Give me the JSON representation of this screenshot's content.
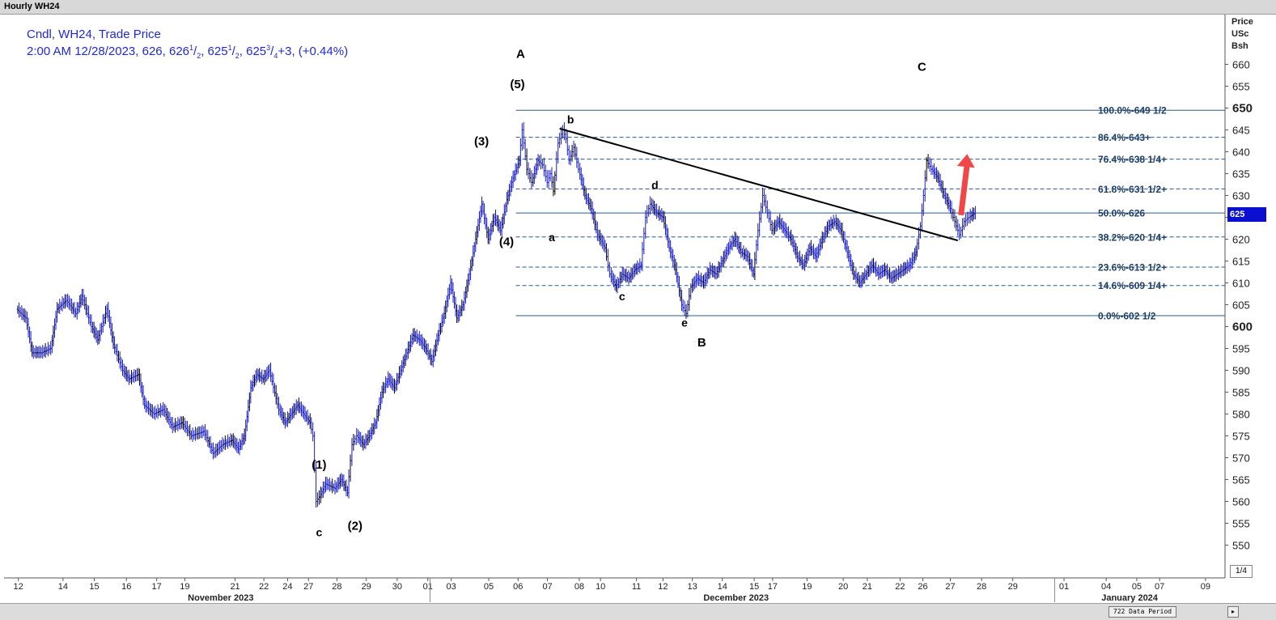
{
  "window": {
    "title": "Hourly WH24"
  },
  "legend": {
    "line1": "Cndl, WH24, Trade Price",
    "line2_parts": [
      "2:00 AM 12/28/2023, 626, 626",
      "1",
      "/",
      "2",
      ", 625",
      "1",
      "/",
      "2",
      ", 625",
      "3",
      "/",
      "4",
      "+3, (+0.44%)"
    ]
  },
  "price_axis": {
    "header": [
      "Price",
      "USc",
      "Bsh"
    ],
    "last_price_label": "625",
    "fraction_button": "1/4"
  },
  "bottom": {
    "data_period": "722 Data Period",
    "scroll_icon": "chevron-right-icon"
  },
  "colors": {
    "bars": "#1a1fc8",
    "bars_alt": "#000000",
    "fib_line": "#2a5a8a",
    "fib_text": "#1f3f66",
    "trendline": "#000000",
    "arrow": "#f04848",
    "last_price_bg": "#0b0fd0"
  },
  "chart_data": {
    "type": "candlestick",
    "title": "Hourly WH24",
    "ylabel": "Price USc Bsh",
    "ylim": [
      545,
      665
    ],
    "y_ticks": [
      550,
      555,
      560,
      565,
      570,
      575,
      580,
      585,
      590,
      595,
      600,
      605,
      610,
      615,
      620,
      625,
      630,
      635,
      640,
      645,
      650,
      655,
      660
    ],
    "y_ticks_bold": [
      600,
      650
    ],
    "x_ticks": [
      {
        "label": "12",
        "t": 0.02
      },
      {
        "label": "14",
        "t": 1.45
      },
      {
        "label": "15",
        "t": 2.45
      },
      {
        "label": "16",
        "t": 3.48
      },
      {
        "label": "17",
        "t": 4.45
      },
      {
        "label": "19",
        "t": 5.35
      },
      {
        "label": "21",
        "t": 6.96
      },
      {
        "label": "22",
        "t": 7.88
      },
      {
        "label": "24",
        "t": 8.64
      },
      {
        "label": "27",
        "t": 9.31
      },
      {
        "label": "28",
        "t": 10.22
      },
      {
        "label": "29",
        "t": 11.16
      },
      {
        "label": "30",
        "t": 12.15
      },
      {
        "label": "01",
        "t": 13.13
      },
      {
        "label": "03",
        "t": 13.88
      },
      {
        "label": "05",
        "t": 15.08
      },
      {
        "label": "06",
        "t": 16.02
      },
      {
        "label": "07",
        "t": 16.96
      },
      {
        "label": "08",
        "t": 17.98
      },
      {
        "label": "10",
        "t": 18.66
      },
      {
        "label": "11",
        "t": 19.81
      },
      {
        "label": "12",
        "t": 20.66
      },
      {
        "label": "13",
        "t": 21.6
      },
      {
        "label": "14",
        "t": 22.56
      },
      {
        "label": "15",
        "t": 23.58
      },
      {
        "label": "17",
        "t": 24.17
      },
      {
        "label": "19",
        "t": 25.27
      },
      {
        "label": "20",
        "t": 26.43
      },
      {
        "label": "21",
        "t": 27.2
      },
      {
        "label": "22",
        "t": 28.25
      },
      {
        "label": "26",
        "t": 28.98
      },
      {
        "label": "27",
        "t": 29.86
      },
      {
        "label": "28",
        "t": 30.86
      },
      {
        "label": "29",
        "t": 31.86
      },
      {
        "label": "01",
        "t": 33.5
      },
      {
        "label": "04",
        "t": 34.85
      },
      {
        "label": "05",
        "t": 35.83
      },
      {
        "label": "07",
        "t": 36.56
      },
      {
        "label": "09",
        "t": 38.03
      }
    ],
    "month_labels": [
      {
        "label": "November 2023",
        "t": 6.5
      },
      {
        "label": "December 2023",
        "t": 23.0
      },
      {
        "label": "January 2024",
        "t": 35.6
      }
    ],
    "month_separators": [
      13.2,
      33.2
    ],
    "series": [
      {
        "kind": "hourly bars (approximate path)",
        "points": [
          [
            0,
            604
          ],
          [
            0.3,
            602
          ],
          [
            0.5,
            594
          ],
          [
            0.8,
            594
          ],
          [
            1.1,
            595
          ],
          [
            1.3,
            604
          ],
          [
            1.6,
            606
          ],
          [
            1.9,
            603
          ],
          [
            2.1,
            607
          ],
          [
            2.4,
            600
          ],
          [
            2.6,
            597
          ],
          [
            2.9,
            604
          ],
          [
            3.1,
            596
          ],
          [
            3.4,
            590
          ],
          [
            3.6,
            588
          ],
          [
            3.9,
            589
          ],
          [
            4.1,
            582
          ],
          [
            4.4,
            580
          ],
          [
            4.7,
            581
          ],
          [
            5.0,
            577
          ],
          [
            5.3,
            578
          ],
          [
            5.6,
            575
          ],
          [
            6.0,
            576
          ],
          [
            6.3,
            571
          ],
          [
            6.6,
            573
          ],
          [
            6.9,
            574
          ],
          [
            7.1,
            572
          ],
          [
            7.3,
            575
          ],
          [
            7.5,
            586
          ],
          [
            7.7,
            589
          ],
          [
            7.9,
            588
          ],
          [
            8.1,
            590
          ],
          [
            8.4,
            581
          ],
          [
            8.6,
            578
          ],
          [
            8.8,
            580
          ],
          [
            9.0,
            582
          ],
          [
            9.2,
            580
          ],
          [
            9.4,
            578
          ],
          [
            9.5,
            575
          ],
          [
            9.6,
            560
          ],
          [
            9.7,
            561
          ],
          [
            9.9,
            564
          ],
          [
            10.2,
            563
          ],
          [
            10.4,
            565
          ],
          [
            10.6,
            562
          ],
          [
            10.75,
            573
          ],
          [
            10.9,
            575
          ],
          [
            11.1,
            573
          ],
          [
            11.3,
            575
          ],
          [
            11.5,
            578
          ],
          [
            11.7,
            585
          ],
          [
            11.9,
            588
          ],
          [
            12.1,
            586
          ],
          [
            12.3,
            590
          ],
          [
            12.5,
            594
          ],
          [
            12.7,
            598
          ],
          [
            12.9,
            597
          ],
          [
            13.1,
            595
          ],
          [
            13.3,
            592
          ],
          [
            13.5,
            598
          ],
          [
            13.7,
            603
          ],
          [
            13.9,
            610
          ],
          [
            14.1,
            602
          ],
          [
            14.3,
            605
          ],
          [
            14.5,
            612
          ],
          [
            14.7,
            620
          ],
          [
            14.9,
            628
          ],
          [
            15.1,
            620
          ],
          [
            15.3,
            625
          ],
          [
            15.5,
            622
          ],
          [
            15.7,
            629
          ],
          [
            15.9,
            634
          ],
          [
            16.1,
            638
          ],
          [
            16.2,
            645
          ],
          [
            16.35,
            636
          ],
          [
            16.5,
            633
          ],
          [
            16.7,
            638
          ],
          [
            16.85,
            637
          ],
          [
            17.0,
            633
          ],
          [
            17.1,
            635
          ],
          [
            17.2,
            631
          ],
          [
            17.35,
            642
          ],
          [
            17.5,
            645
          ],
          [
            17.6,
            643
          ],
          [
            17.7,
            638
          ],
          [
            17.85,
            641
          ],
          [
            18.0,
            636
          ],
          [
            18.2,
            630
          ],
          [
            18.4,
            627
          ],
          [
            18.6,
            621
          ],
          [
            18.85,
            618
          ],
          [
            19.0,
            612
          ],
          [
            19.2,
            609
          ],
          [
            19.4,
            612
          ],
          [
            19.6,
            611
          ],
          [
            19.8,
            613
          ],
          [
            20.0,
            614
          ],
          [
            20.15,
            625
          ],
          [
            20.3,
            628
          ],
          [
            20.5,
            626
          ],
          [
            20.7,
            625
          ],
          [
            20.9,
            618
          ],
          [
            21.1,
            613
          ],
          [
            21.3,
            605
          ],
          [
            21.45,
            603
          ],
          [
            21.6,
            609
          ],
          [
            21.8,
            611
          ],
          [
            22.0,
            610
          ],
          [
            22.2,
            613
          ],
          [
            22.4,
            612
          ],
          [
            22.6,
            615
          ],
          [
            22.8,
            618
          ],
          [
            23.0,
            620
          ],
          [
            23.2,
            617
          ],
          [
            23.4,
            616
          ],
          [
            23.6,
            612
          ],
          [
            23.75,
            622
          ],
          [
            23.9,
            630
          ],
          [
            24.05,
            626
          ],
          [
            24.2,
            622
          ],
          [
            24.4,
            624
          ],
          [
            24.6,
            622
          ],
          [
            24.8,
            620
          ],
          [
            25.0,
            616
          ],
          [
            25.2,
            614
          ],
          [
            25.4,
            618
          ],
          [
            25.6,
            616
          ],
          [
            25.8,
            620
          ],
          [
            26.0,
            623
          ],
          [
            26.2,
            624
          ],
          [
            26.4,
            622
          ],
          [
            26.6,
            617
          ],
          [
            26.8,
            612
          ],
          [
            27.0,
            610
          ],
          [
            27.2,
            612
          ],
          [
            27.4,
            614
          ],
          [
            27.6,
            612
          ],
          [
            27.8,
            613
          ],
          [
            28.0,
            611
          ],
          [
            28.2,
            612
          ],
          [
            28.4,
            613
          ],
          [
            28.6,
            614
          ],
          [
            28.8,
            617
          ],
          [
            28.95,
            623
          ],
          [
            29.05,
            630
          ],
          [
            29.15,
            638
          ],
          [
            29.3,
            636
          ],
          [
            29.5,
            634
          ],
          [
            29.7,
            630
          ],
          [
            29.9,
            627
          ],
          [
            30.05,
            624
          ],
          [
            30.2,
            621
          ],
          [
            30.35,
            624
          ],
          [
            30.5,
            625
          ],
          [
            30.7,
            626
          ]
        ]
      }
    ],
    "fibonacci": {
      "t_start": 15.95,
      "t_end": 38.6,
      "levels": [
        {
          "pct": "100.0%",
          "value_label": "649 1/2",
          "value": 649.5,
          "style": "solid"
        },
        {
          "pct": "86.4%",
          "value_label": "643+",
          "value": 643.3,
          "style": "dashed"
        },
        {
          "pct": "76.4%",
          "value_label": "638 1/4+",
          "value": 638.3,
          "style": "dashed"
        },
        {
          "pct": "61.8%",
          "value_label": "631 1/2+",
          "value": 631.5,
          "style": "dashed"
        },
        {
          "pct": "50.0%",
          "value_label": "626",
          "value": 626.0,
          "style": "solid"
        },
        {
          "pct": "38.2%",
          "value_label": "620 1/4+",
          "value": 620.5,
          "style": "dashed"
        },
        {
          "pct": "23.6%",
          "value_label": "613 1/2+",
          "value": 613.6,
          "style": "dashed"
        },
        {
          "pct": "14.6%",
          "value_label": "609 1/4+",
          "value": 609.4,
          "style": "dashed"
        },
        {
          "pct": "0.0%",
          "value_label": "602 1/2",
          "value": 602.5,
          "style": "solid"
        }
      ]
    },
    "trendline": {
      "from": [
        17.35,
        645.3
      ],
      "to": [
        30.1,
        619.7
      ]
    },
    "annotations": [
      {
        "text": "A",
        "t": 16.1,
        "y": 661.5,
        "bold": true
      },
      {
        "text": "(5)",
        "t": 16.0,
        "y": 654.5,
        "bold": true
      },
      {
        "text": "(3)",
        "t": 14.85,
        "y": 641.5,
        "bold": true
      },
      {
        "text": "(4)",
        "t": 15.65,
        "y": 618.5,
        "bold": true
      },
      {
        "text": "(1)",
        "t": 9.65,
        "y": 567.5,
        "bold": true
      },
      {
        "text": "(2)",
        "t": 10.8,
        "y": 553.5,
        "bold": true
      },
      {
        "text": "c",
        "t": 9.65,
        "y": 552,
        "bold": false
      },
      {
        "text": "a",
        "t": 17.1,
        "y": 619.5,
        "bold": false
      },
      {
        "text": "b",
        "t": 17.7,
        "y": 646.5,
        "bold": false
      },
      {
        "text": "c",
        "t": 19.35,
        "y": 606,
        "bold": false
      },
      {
        "text": "d",
        "t": 20.4,
        "y": 631.5,
        "bold": false
      },
      {
        "text": "e",
        "t": 21.35,
        "y": 600,
        "bold": false
      },
      {
        "text": "B",
        "t": 21.9,
        "y": 595.5,
        "bold": true
      },
      {
        "text": "C",
        "t": 28.95,
        "y": 658.5,
        "bold": true
      }
    ],
    "arrow": {
      "from": [
        30.2,
        625.5
      ],
      "to": [
        30.4,
        639.5
      ]
    }
  }
}
